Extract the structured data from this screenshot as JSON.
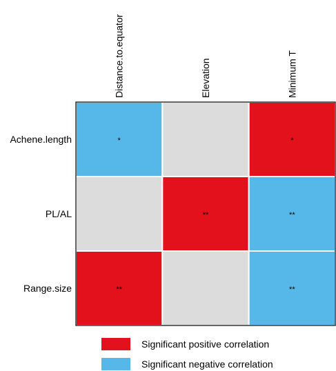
{
  "chart_data": {
    "type": "heatmap",
    "title": "",
    "columns": [
      "Distance.to.equator",
      "Elevation",
      "Minimum T"
    ],
    "rows": [
      "Achene.length",
      "PL/AL",
      "Range.size"
    ],
    "values": [
      [
        "negative",
        "none",
        "positive"
      ],
      [
        "none",
        "positive",
        "negative"
      ],
      [
        "positive",
        "none",
        "negative"
      ]
    ],
    "marks": [
      [
        "*",
        "",
        "*"
      ],
      [
        "",
        "**",
        "**"
      ],
      [
        "**",
        "",
        "**"
      ]
    ],
    "colors": {
      "positive": "#e3111b",
      "negative": "#56b7e9",
      "none": "#dcdcdc"
    },
    "legend": [
      {
        "key": "positive",
        "label": "Significant positive correlation"
      },
      {
        "key": "negative",
        "label": "Significant negative correlation"
      }
    ],
    "legend_position": "bottom"
  }
}
